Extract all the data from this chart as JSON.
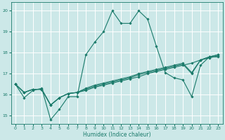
{
  "xlabel": "Humidex (Indice chaleur)",
  "xlim": [
    -0.5,
    23.5
  ],
  "ylim": [
    14.6,
    20.4
  ],
  "yticks": [
    15,
    16,
    17,
    18,
    19,
    20
  ],
  "xticks": [
    0,
    1,
    2,
    3,
    4,
    5,
    6,
    7,
    8,
    9,
    10,
    11,
    12,
    13,
    14,
    15,
    16,
    17,
    18,
    19,
    20,
    21,
    22,
    23
  ],
  "background_color": "#cce8e8",
  "grid_color": "#ffffff",
  "line_color": "#1a7a6a",
  "lines": [
    {
      "x": [
        0,
        1,
        2,
        3,
        4,
        5,
        6,
        7,
        8,
        9,
        10,
        11,
        12,
        13,
        14,
        15,
        16,
        17,
        18,
        19,
        20,
        21,
        22,
        23
      ],
      "y": [
        16.5,
        15.85,
        16.2,
        16.3,
        14.8,
        15.3,
        15.9,
        15.9,
        17.9,
        18.5,
        19.0,
        20.0,
        19.4,
        19.4,
        20.0,
        19.6,
        18.3,
        17.05,
        16.8,
        16.7,
        15.9,
        17.4,
        17.8,
        17.8
      ]
    },
    {
      "x": [
        0,
        1,
        2,
        3,
        4,
        5,
        6,
        7,
        8,
        9,
        10,
        11,
        12,
        13,
        14,
        15,
        16,
        17,
        18,
        19,
        20,
        21,
        22,
        23
      ],
      "y": [
        16.5,
        16.1,
        16.25,
        16.25,
        15.5,
        15.85,
        16.05,
        16.1,
        16.2,
        16.35,
        16.45,
        16.55,
        16.65,
        16.75,
        16.85,
        17.0,
        17.1,
        17.2,
        17.3,
        17.4,
        17.5,
        17.65,
        17.75,
        17.85
      ]
    },
    {
      "x": [
        0,
        1,
        2,
        3,
        4,
        5,
        6,
        7,
        8,
        9,
        10,
        11,
        12,
        13,
        14,
        15,
        16,
        17,
        18,
        19,
        20,
        21,
        22,
        23
      ],
      "y": [
        16.5,
        16.1,
        16.25,
        16.25,
        15.5,
        15.85,
        16.05,
        16.1,
        16.25,
        16.4,
        16.5,
        16.6,
        16.7,
        16.8,
        16.95,
        17.05,
        17.15,
        17.25,
        17.35,
        17.45,
        17.0,
        17.65,
        17.8,
        17.9
      ]
    },
    {
      "x": [
        0,
        1,
        2,
        3,
        4,
        5,
        6,
        7,
        8,
        9,
        10,
        11,
        12,
        13,
        14,
        15,
        16,
        17,
        18,
        19,
        20,
        21,
        22,
        23
      ],
      "y": [
        16.5,
        16.1,
        16.25,
        16.25,
        15.5,
        15.85,
        16.05,
        16.1,
        16.3,
        16.45,
        16.55,
        16.65,
        16.75,
        16.85,
        17.0,
        17.1,
        17.2,
        17.3,
        17.4,
        17.5,
        17.05,
        17.65,
        17.8,
        17.9
      ]
    }
  ]
}
